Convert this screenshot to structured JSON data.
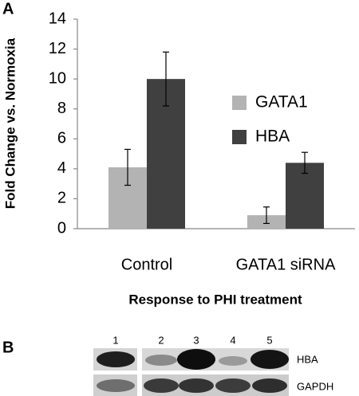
{
  "chart_data": {
    "type": "bar",
    "categories": [
      "Control",
      "GATA1 siRNA"
    ],
    "series": [
      {
        "name": "GATA1",
        "color": "#b3b3b3",
        "values": [
          4.1,
          0.9
        ],
        "errors": [
          1.2,
          0.55
        ]
      },
      {
        "name": "HBA",
        "color": "#404040",
        "values": [
          10.0,
          4.4
        ],
        "errors": [
          1.8,
          0.7
        ]
      }
    ],
    "ylim": [
      0,
      14
    ],
    "yticks": [
      0,
      2,
      4,
      6,
      8,
      10,
      12,
      14
    ],
    "y_label": "Fold Change vs. Normoxia",
    "x_label": "Response to PHI treatment",
    "grid": false,
    "legend": "right"
  },
  "panels": [
    "A",
    "B"
  ],
  "blot": {
    "lanes": [
      "1",
      "2",
      "3",
      "4",
      "5"
    ],
    "rows": [
      "HBA",
      "GAPDH"
    ]
  }
}
